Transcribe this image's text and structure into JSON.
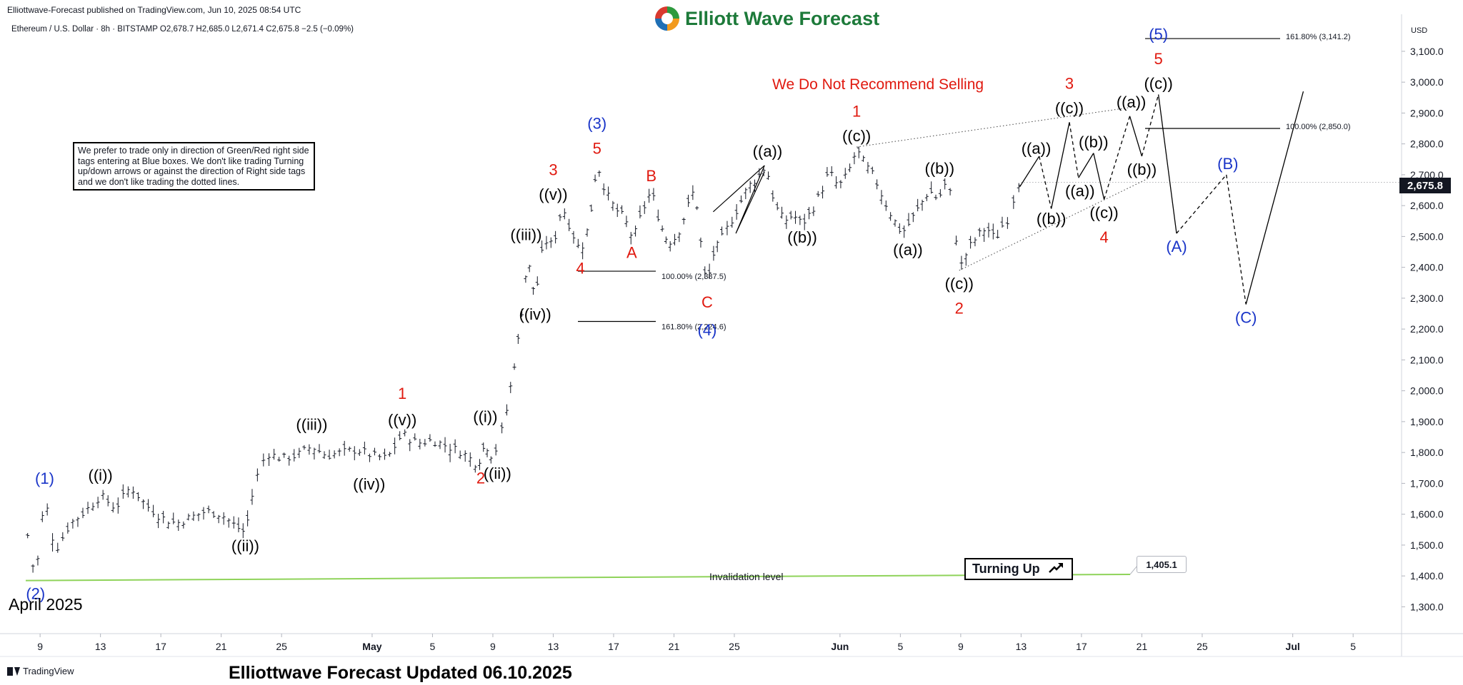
{
  "header": {
    "published": "Elliottwave-Forecast published on TradingView.com, Jun 10, 2025 08:54 UTC",
    "symbol_line": "Ethereum / U.S. Dollar · 8h · BITSTAMP  O2,678.7  H2,685.0  L2,671.4  C2,675.8  −2.5 (−0.09%)",
    "brand": "Elliott Wave Forecast"
  },
  "note_box": "We prefer to trade only in direction of Green/Red right side tags entering at Blue boxes. We don't like trading Turning up/down arrows or against the direction of Right side tags and we don't like trading the dotted lines.",
  "warning": "We Do Not Recommend Selling",
  "turning": {
    "label": "Turning Up",
    "icon": "arrow-up-right-icon"
  },
  "invalidation": {
    "label": "Invalidation level",
    "value": "1,405.1"
  },
  "current_price": "2,675.8",
  "currency": "USD",
  "april_label": "April 2025",
  "footer_title": "Elliottwave Forecast Updated 06.10.2025",
  "tv_brand": "TradingView",
  "colors": {
    "red": "#e0190f",
    "blue": "#1a35c8",
    "black": "#000000",
    "green": "#8fd35a",
    "candle": "#131722"
  },
  "chart_data": {
    "type": "candlestick",
    "timeframe": "8h",
    "ylim": [
      1220,
      3220
    ],
    "y_ticks": [
      1300,
      1400,
      1500,
      1600,
      1700,
      1800,
      1900,
      2000,
      2100,
      2200,
      2300,
      2400,
      2500,
      2600,
      2700,
      2800,
      2900,
      3000,
      3100
    ],
    "y_tick_labels": [
      "1,300.0",
      "1,400.0",
      "1,500.0",
      "1,600.0",
      "1,700.0",
      "1,800.0",
      "1,900.0",
      "2,000.0",
      "2,100.0",
      "2,200.0",
      "2,300.0",
      "2,400.0",
      "2,500.0",
      "2,600.0",
      "2,700.0",
      "2,800.0",
      "2,900.0",
      "3,000.0",
      "3,100.0"
    ],
    "x_ticks": [
      {
        "day": 9,
        "label": "9"
      },
      {
        "day": 13,
        "label": "13"
      },
      {
        "day": 17,
        "label": "17"
      },
      {
        "day": 21,
        "label": "21"
      },
      {
        "day": 25,
        "label": "25"
      },
      {
        "day": 31,
        "label": "May"
      },
      {
        "day": 35,
        "label": "5"
      },
      {
        "day": 39,
        "label": "9"
      },
      {
        "day": 43,
        "label": "13"
      },
      {
        "day": 47,
        "label": "17"
      },
      {
        "day": 51,
        "label": "21"
      },
      {
        "day": 55,
        "label": "25"
      },
      {
        "day": 62,
        "label": "Jun"
      },
      {
        "day": 66,
        "label": "5"
      },
      {
        "day": 70,
        "label": "9"
      },
      {
        "day": 74,
        "label": "13"
      },
      {
        "day": 78,
        "label": "17"
      },
      {
        "day": 82,
        "label": "21"
      },
      {
        "day": 86,
        "label": "25"
      },
      {
        "day": 92,
        "label": "Jul"
      },
      {
        "day": 96,
        "label": "5"
      }
    ],
    "close_path": [
      [
        8,
        1580
      ],
      [
        8.7,
        1385
      ],
      [
        9.3,
        1660
      ],
      [
        10,
        1480
      ],
      [
        11,
        1570
      ],
      [
        12,
        1610
      ],
      [
        13,
        1660
      ],
      [
        14,
        1620
      ],
      [
        15,
        1690
      ],
      [
        16,
        1630
      ],
      [
        17,
        1590
      ],
      [
        18,
        1570
      ],
      [
        19,
        1590
      ],
      [
        20,
        1610
      ],
      [
        21,
        1600
      ],
      [
        22,
        1560
      ],
      [
        22.6,
        1540
      ],
      [
        23.2,
        1700
      ],
      [
        24,
        1800
      ],
      [
        25,
        1780
      ],
      [
        26,
        1790
      ],
      [
        27,
        1820
      ],
      [
        28,
        1790
      ],
      [
        29,
        1800
      ],
      [
        30,
        1810
      ],
      [
        31,
        1790
      ],
      [
        32,
        1780
      ],
      [
        33,
        1860
      ],
      [
        34,
        1830
      ],
      [
        35,
        1840
      ],
      [
        36,
        1820
      ],
      [
        37,
        1800
      ],
      [
        38,
        1760
      ],
      [
        38.5,
        1830
      ],
      [
        39,
        1780
      ],
      [
        39.8,
        1900
      ],
      [
        40.3,
        2050
      ],
      [
        40.8,
        2200
      ],
      [
        41.3,
        2430
      ],
      [
        41.8,
        2300
      ],
      [
        42.4,
        2490
      ],
      [
        43,
        2470
      ],
      [
        43.6,
        2600
      ],
      [
        44.2,
        2520
      ],
      [
        44.8,
        2450
      ],
      [
        45.4,
        2540
      ],
      [
        45.9,
        2740
      ],
      [
        46.5,
        2640
      ],
      [
        47.1,
        2590
      ],
      [
        47.7,
        2560
      ],
      [
        48.3,
        2490
      ],
      [
        48.9,
        2580
      ],
      [
        49.5,
        2650
      ],
      [
        50.1,
        2540
      ],
      [
        50.6,
        2480
      ],
      [
        51.2,
        2500
      ],
      [
        51.8,
        2580
      ],
      [
        52.4,
        2660
      ],
      [
        52.9,
        2420
      ],
      [
        53.2,
        2330
      ],
      [
        53.5,
        2430
      ],
      [
        54,
        2480
      ],
      [
        54.7,
        2540
      ],
      [
        55.3,
        2600
      ],
      [
        55.9,
        2660
      ],
      [
        56.5,
        2690
      ],
      [
        57.1,
        2730
      ],
      [
        57.7,
        2600
      ],
      [
        58.3,
        2550
      ],
      [
        58.9,
        2570
      ],
      [
        59.5,
        2540
      ],
      [
        60.1,
        2580
      ],
      [
        60.7,
        2640
      ],
      [
        61.3,
        2710
      ],
      [
        61.9,
        2660
      ],
      [
        62.5,
        2700
      ],
      [
        63.1,
        2780
      ],
      [
        63.7,
        2730
      ],
      [
        64.3,
        2690
      ],
      [
        64.9,
        2620
      ],
      [
        65.5,
        2560
      ],
      [
        66.1,
        2510
      ],
      [
        66.7,
        2550
      ],
      [
        67.3,
        2600
      ],
      [
        67.9,
        2650
      ],
      [
        68.5,
        2620
      ],
      [
        69.1,
        2680
      ],
      [
        69.5,
        2600
      ],
      [
        69.9,
        2390
      ],
      [
        70.5,
        2460
      ],
      [
        71.1,
        2500
      ],
      [
        71.7,
        2530
      ],
      [
        72.3,
        2490
      ],
      [
        72.9,
        2550
      ],
      [
        73.3,
        2560
      ],
      [
        73.7,
        2680
      ],
      [
        74.0,
        2675.8
      ]
    ],
    "levels": [
      {
        "label": "161.80% (3,141.2)",
        "value": 3141.2
      },
      {
        "label": "100.00% (2,850.0)",
        "value": 2850.0
      },
      {
        "label": "100.00% (2,387.5)",
        "value": 2387.5
      },
      {
        "label": "161.80% (2,224.6)",
        "value": 2224.6
      }
    ],
    "invalidation_level": 1405.1,
    "wave_labels": [
      {
        "text": "(1)",
        "day": 9.3,
        "price": 1680,
        "color": "blue",
        "pos": "above"
      },
      {
        "text": "(2)",
        "day": 8.7,
        "price": 1385,
        "color": "blue",
        "pos": "below"
      },
      {
        "text": "((i))",
        "day": 13,
        "price": 1690,
        "color": "black",
        "pos": "above"
      },
      {
        "text": "((ii))",
        "day": 22.6,
        "price": 1540,
        "color": "black",
        "pos": "below"
      },
      {
        "text": "((iii))",
        "day": 27,
        "price": 1855,
        "color": "black",
        "pos": "above"
      },
      {
        "text": "((iv))",
        "day": 30.8,
        "price": 1740,
        "color": "black",
        "pos": "below"
      },
      {
        "text": "((v))",
        "day": 33,
        "price": 1870,
        "color": "black",
        "pos": "above"
      },
      {
        "text": "1",
        "day": 33,
        "price": 1955,
        "color": "red",
        "pos": "above"
      },
      {
        "text": "2",
        "day": 38.2,
        "price": 1760,
        "color": "red",
        "pos": "below"
      },
      {
        "text": "((i))",
        "day": 38.5,
        "price": 1880,
        "color": "black",
        "pos": "above"
      },
      {
        "text": "((ii))",
        "day": 39.3,
        "price": 1775,
        "color": "black",
        "pos": "below"
      },
      {
        "text": "((iii))",
        "day": 41.2,
        "price": 2470,
        "color": "black",
        "pos": "above"
      },
      {
        "text": "((iv))",
        "day": 41.8,
        "price": 2290,
        "color": "black",
        "pos": "below"
      },
      {
        "text": "((v))",
        "day": 43,
        "price": 2600,
        "color": "black",
        "pos": "above"
      },
      {
        "text": "3",
        "day": 43,
        "price": 2680,
        "color": "red",
        "pos": "above"
      },
      {
        "text": "4",
        "day": 44.8,
        "price": 2440,
        "color": "red",
        "pos": "below"
      },
      {
        "text": "5",
        "day": 45.9,
        "price": 2750,
        "color": "red",
        "pos": "above"
      },
      {
        "text": "(3)",
        "day": 45.9,
        "price": 2830,
        "color": "blue",
        "pos": "above"
      },
      {
        "text": "A",
        "day": 48.2,
        "price": 2490,
        "color": "red",
        "pos": "below"
      },
      {
        "text": "B",
        "day": 49.5,
        "price": 2660,
        "color": "red",
        "pos": "above"
      },
      {
        "text": "C",
        "day": 53.2,
        "price": 2330,
        "color": "red",
        "pos": "below"
      },
      {
        "text": "(4)",
        "day": 53.2,
        "price": 2240,
        "color": "blue",
        "pos": "below"
      },
      {
        "text": "((a))",
        "day": 57.2,
        "price": 2740,
        "color": "black",
        "pos": "above"
      },
      {
        "text": "((b))",
        "day": 59.5,
        "price": 2540,
        "color": "black",
        "pos": "below"
      },
      {
        "text": "((c))",
        "day": 63.1,
        "price": 2790,
        "color": "black",
        "pos": "above"
      },
      {
        "text": "1",
        "day": 63.1,
        "price": 2870,
        "color": "red",
        "pos": "above"
      },
      {
        "text": "((a))",
        "day": 66.5,
        "price": 2500,
        "color": "black",
        "pos": "below"
      },
      {
        "text": "((b))",
        "day": 68.6,
        "price": 2685,
        "color": "black",
        "pos": "above"
      },
      {
        "text": "((c))",
        "day": 69.9,
        "price": 2390,
        "color": "black",
        "pos": "below"
      },
      {
        "text": "2",
        "day": 69.9,
        "price": 2310,
        "color": "red",
        "pos": "below"
      },
      {
        "text": "((a))",
        "day": 75,
        "price": 2750,
        "color": "black",
        "pos": "above"
      },
      {
        "text": "((b))",
        "day": 76,
        "price": 2600,
        "color": "black",
        "pos": "below"
      },
      {
        "text": "((c))",
        "day": 77.2,
        "price": 2880,
        "color": "black",
        "pos": "above"
      },
      {
        "text": "3",
        "day": 77.2,
        "price": 2960,
        "color": "red",
        "pos": "above"
      },
      {
        "text": "((a))",
        "day": 77.9,
        "price": 2690,
        "color": "black",
        "pos": "below"
      },
      {
        "text": "((b))",
        "day": 78.8,
        "price": 2770,
        "color": "black",
        "pos": "above"
      },
      {
        "text": "((c))",
        "day": 79.5,
        "price": 2620,
        "color": "black",
        "pos": "below"
      },
      {
        "text": "4",
        "day": 79.5,
        "price": 2540,
        "color": "red",
        "pos": "below"
      },
      {
        "text": "((a))",
        "day": 81.3,
        "price": 2900,
        "color": "black",
        "pos": "above"
      },
      {
        "text": "((b))",
        "day": 82,
        "price": 2760,
        "color": "black",
        "pos": "below"
      },
      {
        "text": "((c))",
        "day": 83.1,
        "price": 2960,
        "color": "black",
        "pos": "above"
      },
      {
        "text": "5",
        "day": 83.1,
        "price": 3040,
        "color": "red",
        "pos": "above"
      },
      {
        "text": "(5)",
        "day": 83.1,
        "price": 3120,
        "color": "blue",
        "pos": "above"
      },
      {
        "text": "(A)",
        "day": 84.3,
        "price": 2510,
        "color": "blue",
        "pos": "below"
      },
      {
        "text": "(B)",
        "day": 87.7,
        "price": 2700,
        "color": "blue",
        "pos": "above"
      },
      {
        "text": "(C)",
        "day": 88.9,
        "price": 2280,
        "color": "blue",
        "pos": "below"
      }
    ],
    "projection_path": [
      [
        73.9,
        2660
      ],
      [
        75.2,
        2760
      ],
      [
        76,
        2590
      ],
      [
        77.2,
        2870
      ],
      [
        77.8,
        2690
      ],
      [
        78.8,
        2770
      ],
      [
        79.5,
        2620
      ],
      [
        81.2,
        2890
      ],
      [
        82,
        2760
      ],
      [
        83.1,
        2960
      ],
      [
        84.3,
        2510
      ],
      [
        87.6,
        2700
      ],
      [
        88.9,
        2280
      ],
      [
        92.7,
        2970
      ]
    ],
    "dashed_segments": [
      [
        1,
        2
      ],
      [
        3,
        4
      ],
      [
        6,
        7
      ],
      [
        8,
        9
      ],
      [
        10,
        11
      ],
      [
        11,
        12
      ]
    ]
  }
}
